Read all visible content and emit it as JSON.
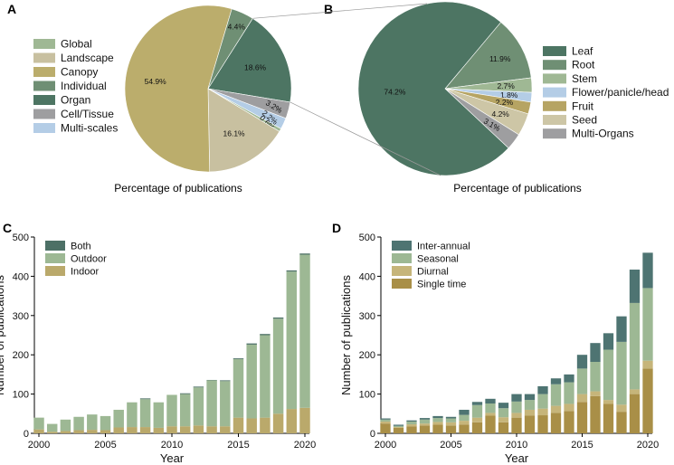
{
  "colors": {
    "global": "#9fb894",
    "landscape": "#c8c0a0",
    "canopy": "#bbad6c",
    "individual": "#6f8f74",
    "organ": "#4d7563",
    "cell_tissue": "#9e9ea0",
    "multi_scales": "#b4cde6",
    "leaf": "#4d7563",
    "root": "#6f8f74",
    "stem": "#9fb894",
    "flower": "#b4cde6",
    "fruit": "#b6a463",
    "seed": "#cdc6a6",
    "multi_organs": "#9e9ea0",
    "both": "#4d7066",
    "outdoor": "#9db894",
    "indoor": "#baa96b",
    "inter_annual": "#4e7472",
    "seasonal": "#9db894",
    "diurnal": "#c6b57a",
    "single_time": "#a98f47",
    "leader": "#999999",
    "axis": "#000000"
  },
  "chart_data": [
    {
      "panel": "A",
      "type": "pie",
      "title": "Percentage of publications",
      "legend": [
        "Global",
        "Landscape",
        "Canopy",
        "Individual",
        "Organ",
        "Cell/Tissue",
        "Multi-scales"
      ],
      "slices": [
        {
          "name": "Organ",
          "value": 18.6,
          "label": "18.6%",
          "color": "organ"
        },
        {
          "name": "Cell/Tissue",
          "value": 3.2,
          "label": "3.2%",
          "color": "cell_tissue"
        },
        {
          "name": "Multi-scales",
          "value": 2.2,
          "label": "2.2%",
          "color": "multi_scales"
        },
        {
          "name": "Global",
          "value": 0.6,
          "label": "0.6%",
          "color": "global"
        },
        {
          "name": "Landscape",
          "value": 16.1,
          "label": "16.1%",
          "color": "landscape"
        },
        {
          "name": "Canopy",
          "value": 54.9,
          "label": "54.9%",
          "color": "canopy"
        },
        {
          "name": "Individual",
          "value": 4.4,
          "label": "4.4%",
          "color": "individual"
        }
      ]
    },
    {
      "panel": "B",
      "type": "pie",
      "title": "Percentage of publications",
      "legend": [
        "Leaf",
        "Root",
        "Stem",
        "Flower/panicle/head",
        "Fruit",
        "Seed",
        "Multi-Organs"
      ],
      "slices": [
        {
          "name": "Root",
          "value": 11.9,
          "label": "11.9%",
          "color": "root"
        },
        {
          "name": "Stem",
          "value": 2.7,
          "label": "2.7%",
          "color": "stem"
        },
        {
          "name": "Flower/panicle/head",
          "value": 1.8,
          "label": "1.8%",
          "color": "flower"
        },
        {
          "name": "Fruit",
          "value": 2.2,
          "label": "2.2%",
          "color": "fruit"
        },
        {
          "name": "Seed",
          "value": 4.2,
          "label": "4.2%",
          "color": "seed"
        },
        {
          "name": "Multi-Organs",
          "value": 3.1,
          "label": "3.1%",
          "color": "multi_organs"
        },
        {
          "name": "Leaf",
          "value": 74.2,
          "label": "74.2%",
          "color": "leaf"
        }
      ]
    },
    {
      "panel": "C",
      "type": "bar",
      "stacked": true,
      "xlabel": "Year",
      "ylabel": "Number of publications",
      "ylim": [
        0,
        500
      ],
      "yticks": [
        0,
        100,
        200,
        300,
        400,
        500
      ],
      "xticks": [
        2000,
        2005,
        2010,
        2015,
        2020
      ],
      "legend_position": "top-left",
      "categories": [
        2000,
        2001,
        2002,
        2003,
        2004,
        2005,
        2006,
        2007,
        2008,
        2009,
        2010,
        2011,
        2012,
        2013,
        2014,
        2015,
        2016,
        2017,
        2018,
        2019,
        2020
      ],
      "series": [
        {
          "name": "Indoor",
          "color": "indoor",
          "values": [
            10,
            4,
            6,
            8,
            9,
            8,
            15,
            16,
            16,
            14,
            18,
            18,
            20,
            18,
            18,
            40,
            38,
            40,
            50,
            62,
            65
          ]
        },
        {
          "name": "Outdoor",
          "color": "outdoor",
          "values": [
            30,
            20,
            29,
            34,
            39,
            36,
            45,
            63,
            71,
            65,
            80,
            82,
            97,
            117,
            115,
            149,
            188,
            210,
            242,
            350,
            390
          ]
        },
        {
          "name": "Both",
          "color": "both",
          "values": [
            0,
            0,
            0,
            0,
            0,
            0,
            0,
            0,
            2,
            0,
            0,
            2,
            2,
            1,
            2,
            2,
            3,
            3,
            3,
            3,
            3
          ]
        }
      ],
      "legend": [
        "Both",
        "Outdoor",
        "Indoor"
      ]
    },
    {
      "panel": "D",
      "type": "bar",
      "stacked": true,
      "xlabel": "Year",
      "ylabel": "Number of publications",
      "ylim": [
        0,
        500
      ],
      "yticks": [
        0,
        100,
        200,
        300,
        400,
        500
      ],
      "xticks": [
        2000,
        2005,
        2010,
        2015,
        2020
      ],
      "legend_position": "top-left",
      "categories": [
        2000,
        2001,
        2002,
        2003,
        2004,
        2005,
        2006,
        2007,
        2008,
        2009,
        2010,
        2011,
        2012,
        2013,
        2014,
        2015,
        2016,
        2017,
        2018,
        2019,
        2020
      ],
      "series": [
        {
          "name": "Single time",
          "color": "single_time",
          "values": [
            25,
            14,
            18,
            20,
            22,
            20,
            22,
            28,
            45,
            28,
            40,
            45,
            46,
            52,
            57,
            80,
            95,
            75,
            55,
            100,
            165
          ]
        },
        {
          "name": "Diurnal",
          "color": "diurnal",
          "values": [
            5,
            2,
            5,
            5,
            7,
            8,
            10,
            12,
            7,
            13,
            12,
            15,
            17,
            18,
            18,
            20,
            12,
            10,
            18,
            12,
            20
          ]
        },
        {
          "name": "Seasonal",
          "color": "seasonal",
          "values": [
            5,
            3,
            7,
            10,
            10,
            10,
            15,
            32,
            24,
            23,
            29,
            25,
            37,
            55,
            55,
            65,
            75,
            128,
            160,
            220,
            185
          ]
        },
        {
          "name": "Inter-annual",
          "color": "inter_annual",
          "values": [
            3,
            3,
            3,
            4,
            5,
            4,
            13,
            8,
            12,
            14,
            19,
            15,
            20,
            15,
            20,
            35,
            48,
            42,
            65,
            85,
            90
          ]
        }
      ],
      "legend": [
        "Inter-annual",
        "Seasonal",
        "Diurnal",
        "Single time"
      ]
    }
  ],
  "panel_labels": [
    "A",
    "B",
    "C",
    "D"
  ]
}
